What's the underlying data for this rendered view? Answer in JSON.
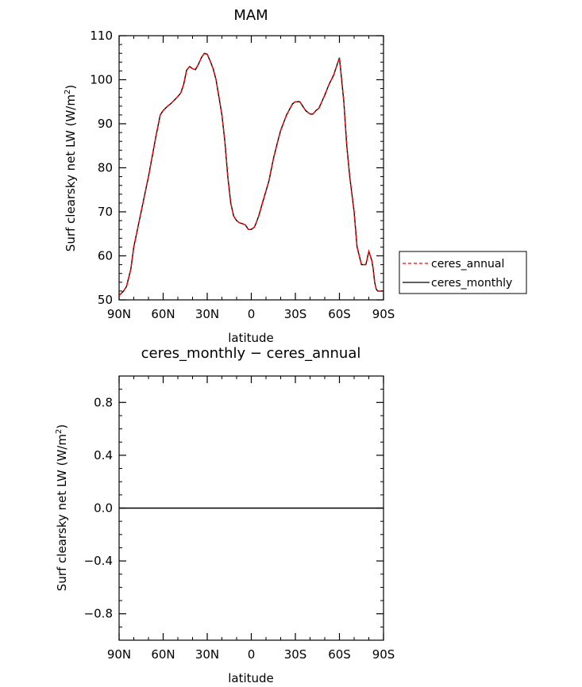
{
  "chart_data": [
    {
      "type": "line",
      "title": "MAM",
      "xlabel": "latitude",
      "ylabel": "Surf clearsky net LW (W/m",
      "ylabel_sup": "2",
      "ylabel_close": ")",
      "xlim": [
        90,
        -90
      ],
      "ylim": [
        50,
        110
      ],
      "x_ticks": [
        90,
        60,
        30,
        0,
        -30,
        -60,
        -90
      ],
      "x_tick_labels": [
        "90N",
        "60N",
        "30N",
        "0",
        "30S",
        "60S",
        "90S"
      ],
      "y_ticks": [
        50,
        60,
        70,
        80,
        90,
        100,
        110
      ],
      "y_tick_labels": [
        "50",
        "60",
        "70",
        "80",
        "90",
        "100",
        "110"
      ],
      "legend": {
        "placement": "right",
        "entries": [
          "ceres_annual",
          "ceres_monthly"
        ]
      },
      "series": [
        {
          "name": "ceres_annual",
          "color": "#ff0000",
          "dash": "dashed",
          "x": [
            90,
            87,
            85,
            82,
            80,
            75,
            70,
            65,
            62,
            60,
            57,
            55,
            52,
            50,
            48,
            46,
            44,
            42,
            40,
            38,
            36,
            34,
            32,
            30,
            29,
            28,
            26,
            24,
            22,
            20,
            18,
            16,
            14,
            12,
            10,
            8,
            6,
            4,
            2,
            0,
            -2,
            -3,
            -5,
            -8,
            -12,
            -15,
            -18,
            -20,
            -24,
            -28,
            -30,
            -33,
            -35,
            -37,
            -40,
            -42,
            -44,
            -46,
            -48,
            -50,
            -53,
            -56,
            -60,
            -63,
            -65,
            -67,
            -70,
            -72,
            -75,
            -78,
            -80,
            -81,
            -82,
            -83,
            -84,
            -85,
            -86,
            -87,
            -88,
            -89,
            -90
          ],
          "y": [
            51,
            52,
            53,
            57,
            62,
            70,
            78,
            87,
            92,
            93,
            94,
            94.5,
            95.5,
            96.2,
            97,
            99,
            102.2,
            103,
            102.5,
            102.3,
            103.5,
            105,
            106,
            105.8,
            105,
            104.3,
            102.5,
            100,
            96,
            92,
            86,
            78,
            72,
            69,
            68,
            67.5,
            67.3,
            67,
            66,
            66,
            66.5,
            67.2,
            69,
            72.5,
            77,
            82,
            86,
            88.5,
            92,
            94.5,
            95,
            95,
            94,
            93,
            92.2,
            92.2,
            93,
            93.5,
            95,
            96.5,
            99,
            101,
            105,
            95,
            85,
            78,
            70,
            62,
            58,
            58,
            61,
            60,
            59,
            57,
            54,
            52.5,
            52,
            52,
            52,
            52,
            52
          ]
        },
        {
          "name": "ceres_monthly",
          "color": "#000000",
          "dash": "solid",
          "x": [
            90,
            87,
            85,
            82,
            80,
            75,
            70,
            65,
            62,
            60,
            57,
            55,
            52,
            50,
            48,
            46,
            44,
            42,
            40,
            38,
            36,
            34,
            32,
            30,
            29,
            28,
            26,
            24,
            22,
            20,
            18,
            16,
            14,
            12,
            10,
            8,
            6,
            4,
            2,
            0,
            -2,
            -3,
            -5,
            -8,
            -12,
            -15,
            -18,
            -20,
            -24,
            -28,
            -30,
            -33,
            -35,
            -37,
            -40,
            -42,
            -44,
            -46,
            -48,
            -50,
            -53,
            -56,
            -60,
            -63,
            -65,
            -67,
            -70,
            -72,
            -75,
            -78,
            -80,
            -81,
            -82,
            -83,
            -84,
            -85,
            -86,
            -87,
            -88,
            -89,
            -90
          ],
          "y": [
            51,
            52,
            53,
            57,
            62,
            70,
            78,
            87,
            92,
            93,
            94,
            94.5,
            95.5,
            96.2,
            97,
            99,
            102.2,
            103,
            102.5,
            102.3,
            103.5,
            105,
            106,
            105.8,
            105,
            104.3,
            102.5,
            100,
            96,
            92,
            86,
            78,
            72,
            69,
            68,
            67.5,
            67.3,
            67,
            66,
            66,
            66.5,
            67.2,
            69,
            72.5,
            77,
            82,
            86,
            88.5,
            92,
            94.5,
            95,
            95,
            94,
            93,
            92.2,
            92.2,
            93,
            93.5,
            95,
            96.5,
            99,
            101,
            105,
            95,
            85,
            78,
            70,
            62,
            58,
            58,
            61,
            60,
            59,
            57,
            54,
            52.5,
            52,
            52,
            52,
            52,
            52
          ]
        }
      ]
    },
    {
      "type": "line",
      "title": "ceres_monthly − ceres_annual",
      "xlabel": "latitude",
      "ylabel": "Surf clearsky net LW (W/m",
      "ylabel_sup": "2",
      "ylabel_close": ")",
      "xlim": [
        90,
        -90
      ],
      "ylim": [
        -1,
        1
      ],
      "x_ticks": [
        90,
        60,
        30,
        0,
        -30,
        -60,
        -90
      ],
      "x_tick_labels": [
        "90N",
        "60N",
        "30N",
        "0",
        "30S",
        "60S",
        "90S"
      ],
      "y_ticks": [
        -0.8,
        -0.4,
        0.0,
        0.4,
        0.8
      ],
      "y_tick_labels": [
        "−0.8",
        "−0.4",
        "0.0",
        "0.4",
        "0.8"
      ],
      "series": [
        {
          "color": "#000000",
          "dash": "solid",
          "x": [
            90,
            -90
          ],
          "y": [
            0,
            0
          ]
        }
      ]
    }
  ]
}
